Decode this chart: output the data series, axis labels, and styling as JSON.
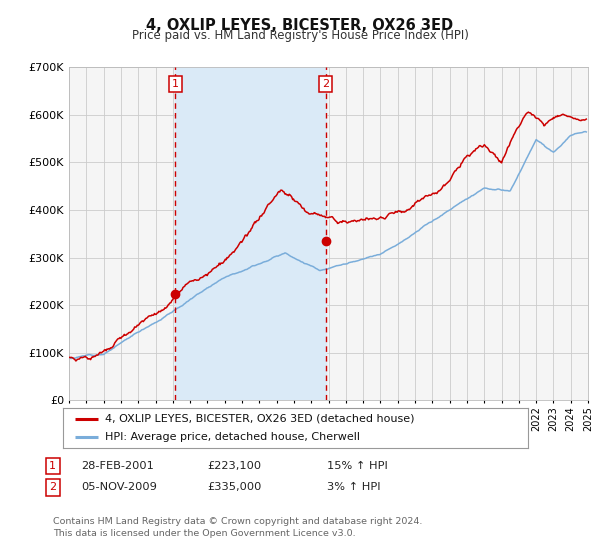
{
  "title": "4, OXLIP LEYES, BICESTER, OX26 3ED",
  "subtitle": "Price paid vs. HM Land Registry's House Price Index (HPI)",
  "legend_label_red": "4, OXLIP LEYES, BICESTER, OX26 3ED (detached house)",
  "legend_label_blue": "HPI: Average price, detached house, Cherwell",
  "annotation_1_label": "1",
  "annotation_1_date": "28-FEB-2001",
  "annotation_1_price": "£223,100",
  "annotation_1_hpi": "15% ↑ HPI",
  "annotation_2_label": "2",
  "annotation_2_date": "05-NOV-2009",
  "annotation_2_price": "£335,000",
  "annotation_2_hpi": "3% ↑ HPI",
  "footer_line1": "Contains HM Land Registry data © Crown copyright and database right 2024.",
  "footer_line2": "This data is licensed under the Open Government Licence v3.0.",
  "vline1_x": 2001.15,
  "vline2_x": 2009.84,
  "marker1_x": 2001.15,
  "marker1_y": 223100,
  "marker2_x": 2009.84,
  "marker2_y": 335000,
  "shade_x1": 2001.15,
  "shade_x2": 2009.84,
  "xmin": 1995,
  "xmax": 2025,
  "ymin": 0,
  "ymax": 700000,
  "yticks": [
    0,
    100000,
    200000,
    300000,
    400000,
    500000,
    600000,
    700000
  ],
  "ytick_labels": [
    "£0",
    "£100K",
    "£200K",
    "£300K",
    "£400K",
    "£500K",
    "£600K",
    "£700K"
  ],
  "red_color": "#cc0000",
  "blue_color": "#7aadda",
  "shade_color": "#daeaf7",
  "vline_color": "#cc0000",
  "grid_color": "#cccccc",
  "bg_color": "#f5f5f5"
}
